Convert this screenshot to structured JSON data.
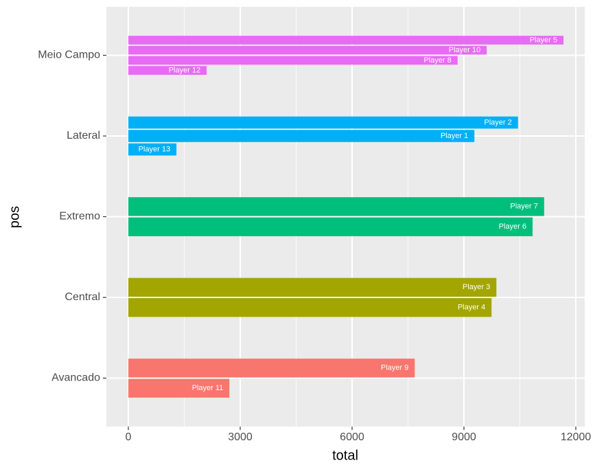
{
  "chart_data": {
    "type": "bar",
    "orientation": "horizontal",
    "x_label": "total",
    "y_label": "pos",
    "groups": [
      {
        "name": "Meio Campo",
        "color": "#E76BF3",
        "labels": [
          "Player 5",
          "Player 10",
          "Player 8",
          "Player 12"
        ],
        "values": [
          11670,
          9610,
          8830,
          2100
        ]
      },
      {
        "name": "Lateral",
        "color": "#00B0F6",
        "labels": [
          "Player 2",
          "Player 1",
          "Player 13"
        ],
        "values": [
          10450,
          9280,
          1290
        ]
      },
      {
        "name": "Extremo",
        "color": "#00BF7D",
        "labels": [
          "Player 7",
          "Player 6"
        ],
        "values": [
          11150,
          10840
        ]
      },
      {
        "name": "Central",
        "color": "#A3A500",
        "labels": [
          "Player 3",
          "Player 4"
        ],
        "values": [
          9870,
          9740
        ]
      },
      {
        "name": "Avancado",
        "color": "#F8766D",
        "labels": [
          "Player 9",
          "Player 11"
        ],
        "values": [
          7680,
          2710
        ]
      }
    ],
    "xlim": [
      -589,
      12240
    ],
    "xticks": [
      0,
      3000,
      6000,
      9000,
      12000
    ],
    "grid": true
  }
}
